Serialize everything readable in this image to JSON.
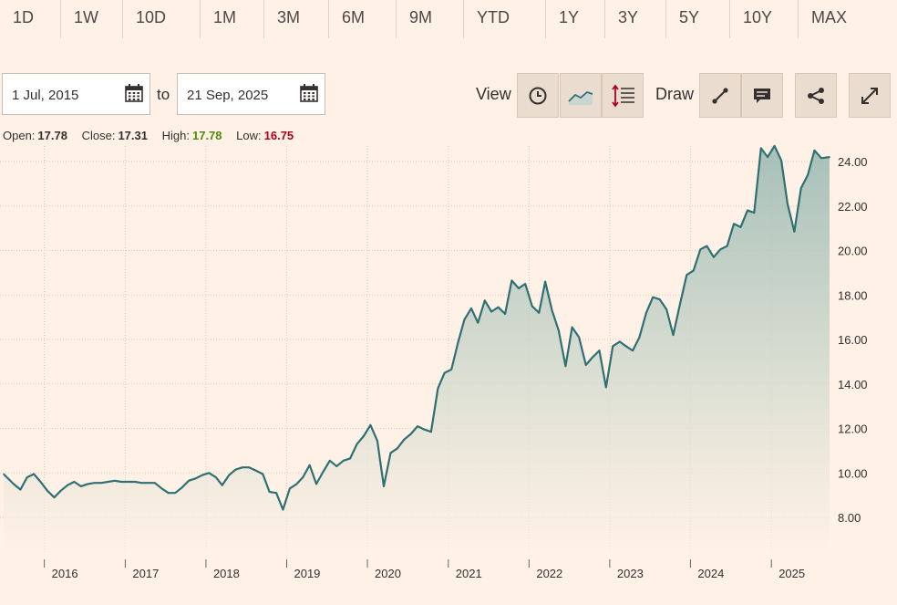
{
  "ranges": [
    "1D",
    "1W",
    "10D",
    "1M",
    "3M",
    "6M",
    "9M",
    "YTD",
    "1Y",
    "3Y",
    "5Y",
    "10Y",
    "MAX"
  ],
  "date_from": "1 Jul, 2015",
  "date_to": "21 Sep, 2025",
  "to_label": "to",
  "view_label": "View",
  "draw_label": "Draw",
  "ohlc": {
    "open_label": "Open:",
    "open": "17.78",
    "close_label": "Close:",
    "close": "17.31",
    "high_label": "High:",
    "high": "17.78",
    "low_label": "Low:",
    "low": "16.75"
  },
  "colors": {
    "background": "#FFF1E5",
    "line": "#2E7073",
    "high": "#4F8A10",
    "low": "#B0001E"
  },
  "chart_data": {
    "type": "area",
    "title": "",
    "xlabel": "",
    "ylabel": "",
    "ylim": [
      6.0,
      25.0
    ],
    "y_ticks": [
      "8.00",
      "10.00",
      "12.00",
      "14.00",
      "16.00",
      "18.00",
      "20.00",
      "22.00",
      "24.00"
    ],
    "x_ticks": [
      "2016",
      "2017",
      "2018",
      "2019",
      "2020",
      "2021",
      "2022",
      "2023",
      "2024",
      "2025"
    ],
    "grid": true,
    "x_start": "2015-07-01",
    "x_end": "2025-09-21",
    "series": [
      {
        "name": "",
        "x": [
          "2015-07",
          "2015-08",
          "2015-09",
          "2015-10",
          "2015-11",
          "2015-12",
          "2016-01",
          "2016-02",
          "2016-03",
          "2016-04",
          "2016-05",
          "2016-06",
          "2016-07",
          "2016-08",
          "2016-09",
          "2016-10",
          "2016-11",
          "2016-12",
          "2017-01",
          "2017-02",
          "2017-03",
          "2017-04",
          "2017-05",
          "2017-06",
          "2017-07",
          "2017-08",
          "2017-09",
          "2017-10",
          "2017-11",
          "2017-12",
          "2018-01",
          "2018-02",
          "2018-03",
          "2018-04",
          "2018-05",
          "2018-06",
          "2018-07",
          "2018-08",
          "2018-09",
          "2018-10",
          "2018-11",
          "2018-12",
          "2019-01",
          "2019-02",
          "2019-03",
          "2019-04",
          "2019-05",
          "2019-06",
          "2019-07",
          "2019-08",
          "2019-09",
          "2019-10",
          "2019-11",
          "2019-12",
          "2020-01",
          "2020-02",
          "2020-03",
          "2020-04",
          "2020-05",
          "2020-06",
          "2020-07",
          "2020-08",
          "2020-09",
          "2020-10",
          "2020-11",
          "2020-12",
          "2021-01",
          "2021-02",
          "2021-03",
          "2021-04",
          "2021-05",
          "2021-06",
          "2021-07",
          "2021-08",
          "2021-09",
          "2021-10",
          "2021-11",
          "2021-12",
          "2022-01",
          "2022-02",
          "2022-03",
          "2022-04",
          "2022-05",
          "2022-06",
          "2022-07",
          "2022-08",
          "2022-09",
          "2022-10",
          "2022-11",
          "2022-12",
          "2023-01",
          "2023-02",
          "2023-03",
          "2023-04",
          "2023-05",
          "2023-06",
          "2023-07",
          "2023-08",
          "2023-09",
          "2023-10",
          "2023-11",
          "2023-12",
          "2024-01",
          "2024-02",
          "2024-03",
          "2024-04",
          "2024-05",
          "2024-06",
          "2024-07",
          "2024-08",
          "2024-09",
          "2024-10",
          "2024-11",
          "2024-12",
          "2025-01",
          "2025-02",
          "2025-03",
          "2025-04",
          "2025-05",
          "2025-06",
          "2025-07",
          "2025-08",
          "2025-09"
        ],
        "values": [
          9.95,
          9.5,
          9.25,
          9.8,
          9.95,
          9.6,
          9.2,
          8.9,
          9.2,
          9.45,
          9.6,
          9.4,
          9.5,
          9.55,
          9.55,
          9.6,
          9.65,
          9.6,
          9.6,
          9.6,
          9.55,
          9.55,
          9.55,
          9.3,
          9.1,
          9.1,
          9.35,
          9.65,
          9.75,
          9.9,
          10.0,
          9.8,
          9.45,
          9.9,
          10.15,
          10.25,
          10.25,
          10.1,
          9.95,
          9.15,
          9.1,
          8.35,
          9.3,
          9.5,
          9.8,
          10.35,
          9.5,
          10.05,
          10.55,
          10.3,
          10.55,
          10.65,
          11.3,
          11.65,
          12.15,
          11.45,
          9.4,
          10.9,
          11.1,
          11.5,
          11.75,
          12.1,
          11.95,
          11.85,
          13.8,
          14.5,
          14.65,
          15.9,
          16.9,
          17.4,
          16.75,
          17.75,
          17.25,
          17.45,
          17.15,
          18.65,
          18.3,
          18.5,
          17.5,
          17.2,
          18.6,
          17.3,
          16.4,
          14.8,
          16.55,
          16.1,
          14.85,
          15.2,
          15.5,
          13.85,
          15.7,
          15.9,
          15.7,
          15.5,
          16.1,
          17.2,
          17.9,
          17.8,
          17.35,
          16.2,
          17.6,
          18.9,
          19.1,
          20.05,
          20.2,
          19.7,
          20.05,
          20.2,
          21.2,
          21.05,
          21.8,
          21.7,
          24.6,
          24.2,
          24.7,
          24.05,
          22.1,
          20.85,
          22.8,
          23.4,
          24.5,
          24.15,
          24.2
        ]
      }
    ]
  }
}
